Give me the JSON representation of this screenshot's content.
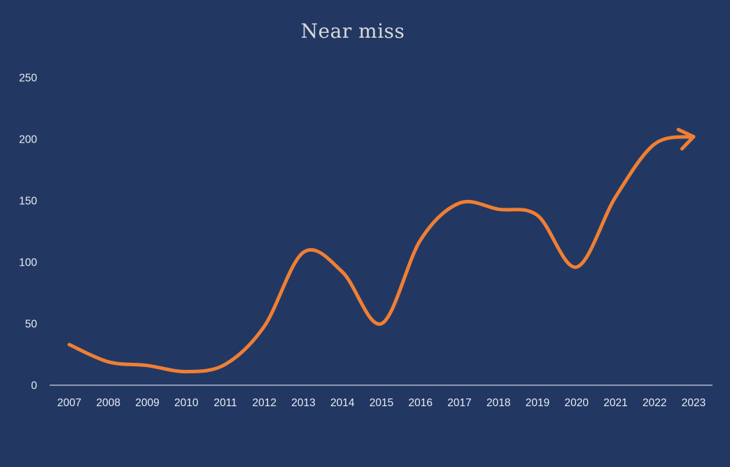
{
  "chart_data": {
    "type": "line",
    "title": "Near miss",
    "xlabel": "",
    "ylabel": "",
    "categories": [
      "2007",
      "2008",
      "2009",
      "2010",
      "2011",
      "2012",
      "2013",
      "2014",
      "2015",
      "2016",
      "2017",
      "2018",
      "2019",
      "2020",
      "2021",
      "2022",
      "2023"
    ],
    "series": [
      {
        "values": [
          33,
          19,
          16,
          11,
          17,
          48,
          108,
          92,
          50,
          118,
          148,
          143,
          138,
          96,
          153,
          196,
          202
        ]
      }
    ],
    "yticks": [
      "0",
      "50",
      "100",
      "150",
      "200",
      "250"
    ],
    "ylim": [
      0,
      250
    ],
    "grid": false,
    "legend": "none",
    "smooth": true,
    "end_arrow": true,
    "colors": {
      "background": "#223863",
      "line": "#f07f33",
      "axis": "#b4bccb",
      "text": "#e8ecf3",
      "title": "#d9d9d9"
    }
  }
}
